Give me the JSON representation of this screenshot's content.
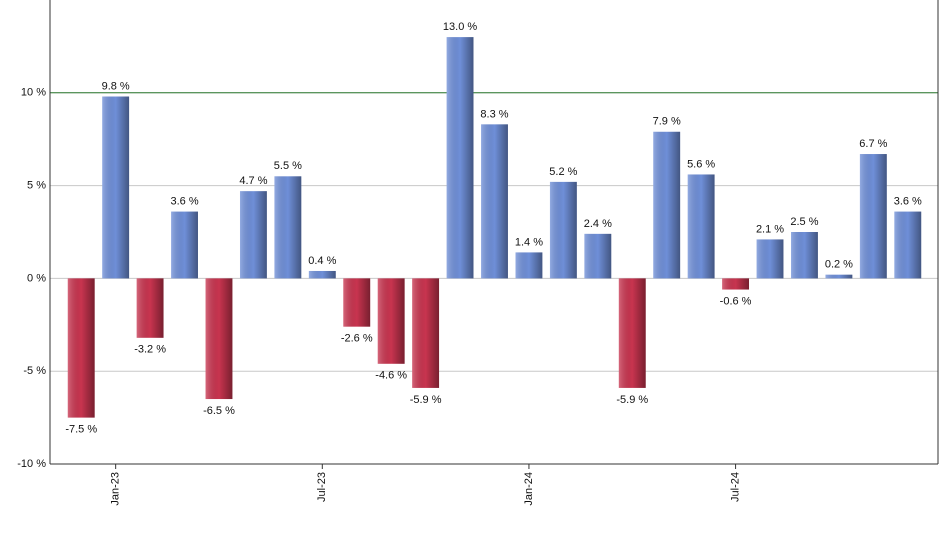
{
  "chart_data": {
    "type": "bar",
    "categories": [
      null,
      "Jan-23",
      null,
      null,
      null,
      null,
      null,
      "Jul-23",
      null,
      null,
      null,
      null,
      null,
      "Jan-24",
      null,
      null,
      null,
      null,
      null,
      "Jul-24",
      null,
      null,
      null,
      null,
      null
    ],
    "values": [
      -7.5,
      9.8,
      -3.2,
      3.6,
      -6.5,
      4.7,
      5.5,
      0.4,
      -2.6,
      -4.6,
      -5.9,
      13.0,
      8.3,
      1.4,
      5.2,
      2.4,
      -5.9,
      7.9,
      5.6,
      -0.6,
      2.1,
      2.5,
      0.2,
      6.7,
      3.6
    ],
    "value_labels": [
      "-7.5 %",
      "9.8 %",
      "-3.2 %",
      "3.6 %",
      "-6.5 %",
      "4.7 %",
      "5.5 %",
      "0.4 %",
      "-2.6 %",
      "-4.6 %",
      "-5.9 %",
      "13.0 %",
      "8.3 %",
      "1.4 %",
      "5.2 %",
      "2.4 %",
      "-5.9 %",
      "7.9 %",
      "5.6 %",
      "-0.6 %",
      "2.1 %",
      "2.5 %",
      "0.2 %",
      "6.7 %",
      "3.6 %"
    ],
    "positive_color": "#6f8fd8",
    "negative_color": "#c8344f",
    "ylim": [
      -10,
      15
    ],
    "yticks": [
      {
        "value": -10,
        "label": "-10 %"
      },
      {
        "value": -5,
        "label": "-5 %"
      },
      {
        "value": 0,
        "label": "0 %"
      },
      {
        "value": 5,
        "label": "5 %"
      },
      {
        "value": 10,
        "label": "10 %"
      }
    ],
    "grid": true,
    "target_line": {
      "value": 10,
      "color": "#2e7d32"
    }
  }
}
